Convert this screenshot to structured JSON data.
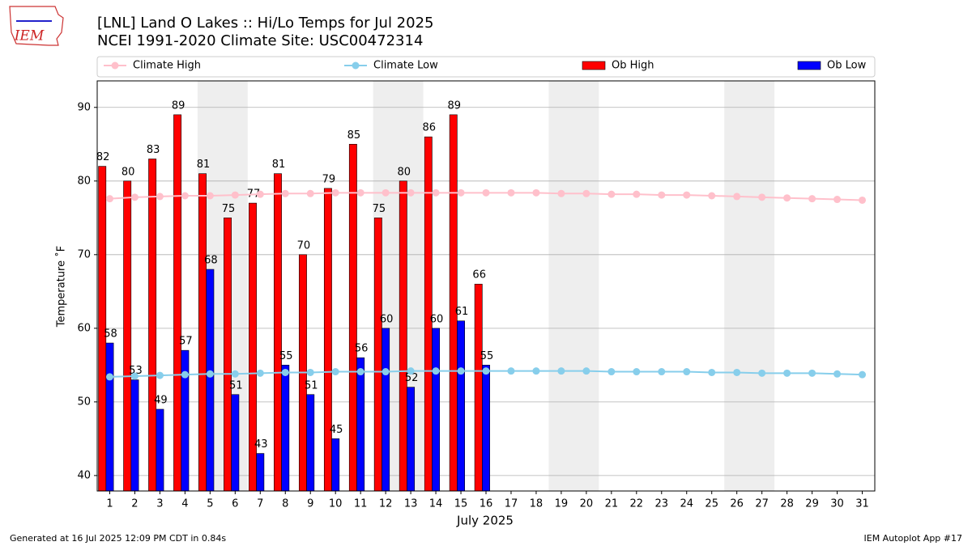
{
  "logo_text": "IEM",
  "chart_data": {
    "type": "bar",
    "title": "[LNL] Land O Lakes :: Hi/Lo Temps for Jul 2025",
    "subtitle": "NCEI 1991-2020 Climate Site: USC00472314",
    "xlabel": "July 2025",
    "ylabel": "Temperature ˚F",
    "categories": [
      "1",
      "2",
      "3",
      "4",
      "5",
      "6",
      "7",
      "8",
      "9",
      "10",
      "11",
      "12",
      "13",
      "14",
      "15",
      "16",
      "17",
      "18",
      "19",
      "20",
      "21",
      "22",
      "23",
      "24",
      "25",
      "26",
      "27",
      "28",
      "29",
      "30",
      "31"
    ],
    "series": [
      {
        "name": "Climate High",
        "kind": "line",
        "color": "#ffc0cb",
        "values": [
          77.6,
          77.8,
          77.9,
          78.0,
          78.0,
          78.1,
          78.2,
          78.3,
          78.3,
          78.4,
          78.4,
          78.4,
          78.4,
          78.4,
          78.4,
          78.4,
          78.4,
          78.4,
          78.3,
          78.3,
          78.2,
          78.2,
          78.1,
          78.1,
          78.0,
          77.9,
          77.8,
          77.7,
          77.6,
          77.5,
          77.4
        ]
      },
      {
        "name": "Climate Low",
        "kind": "line",
        "color": "#87ceeb",
        "values": [
          53.4,
          53.5,
          53.6,
          53.7,
          53.8,
          53.8,
          53.9,
          54.0,
          54.0,
          54.1,
          54.1,
          54.1,
          54.2,
          54.2,
          54.2,
          54.2,
          54.2,
          54.2,
          54.2,
          54.2,
          54.1,
          54.1,
          54.1,
          54.1,
          54.0,
          54.0,
          53.9,
          53.9,
          53.9,
          53.8,
          53.7
        ]
      },
      {
        "name": "Ob High",
        "kind": "bar",
        "color": "#ff0000",
        "values": [
          82,
          80,
          83,
          89,
          81,
          75,
          77,
          81,
          70,
          79,
          85,
          75,
          80,
          86,
          89,
          66,
          null,
          null,
          null,
          null,
          null,
          null,
          null,
          null,
          null,
          null,
          null,
          null,
          null,
          null,
          null
        ]
      },
      {
        "name": "Ob Low",
        "kind": "bar",
        "color": "#0000ff",
        "values": [
          58,
          53,
          49,
          57,
          68,
          51,
          43,
          55,
          51,
          45,
          56,
          60,
          52,
          60,
          61,
          55,
          null,
          null,
          null,
          null,
          null,
          null,
          null,
          null,
          null,
          null,
          null,
          null,
          null,
          null,
          null
        ]
      }
    ],
    "ylim": [
      37.9,
      93.6
    ],
    "yticks": [
      40,
      50,
      60,
      70,
      80,
      90
    ],
    "grid": true,
    "legend": "top",
    "shaded_days": [
      [
        5,
        6
      ],
      [
        12,
        13
      ],
      [
        19,
        20
      ],
      [
        26,
        27
      ]
    ],
    "shade_color": "#eeeeee",
    "footer_left": "Generated at 16 Jul 2025 12:09 PM CDT in 0.84s",
    "footer_right": "IEM Autoplot App #17"
  }
}
